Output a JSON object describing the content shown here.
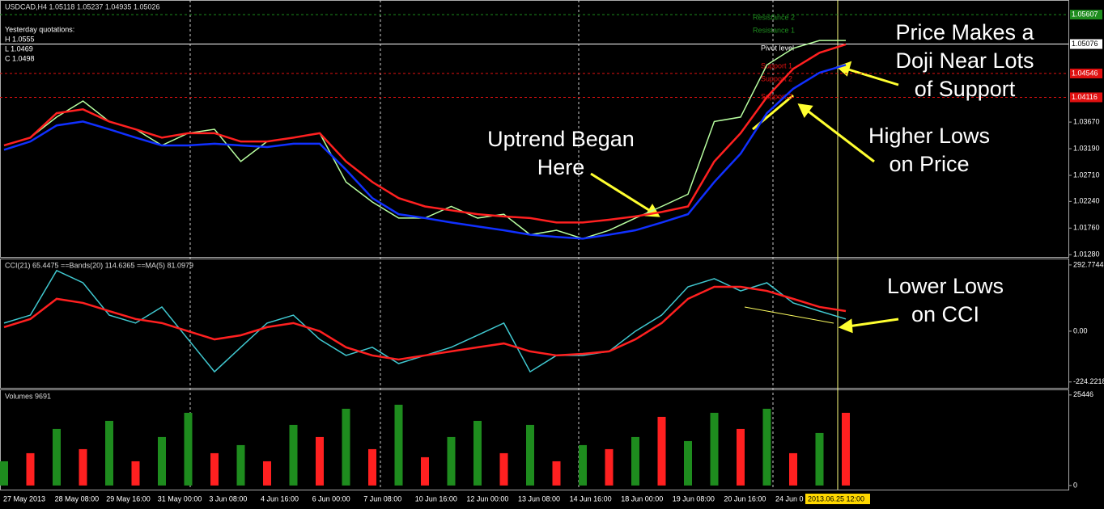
{
  "chart_data": [
    {
      "type": "line",
      "title": "USDCAD,H4  1.05118 1.05237 1.04935 1.05026",
      "info": [
        "Yesterday quotations:",
        "H 1.0555",
        "L 1.0469",
        "C 1.0498"
      ],
      "pivot_labels": [
        "Resistance 2",
        "Resistance 1",
        "Pivot level",
        "Support 1",
        "Support 2",
        "Support 3"
      ],
      "ylim": [
        1.0124,
        1.0587
      ],
      "yticks": [
        {
          "value": 1.0128,
          "label": "1.01280"
        },
        {
          "value": 1.0176,
          "label": "1.01760"
        },
        {
          "value": 1.0224,
          "label": "1.02240"
        },
        {
          "value": 1.0271,
          "label": "1.02710"
        },
        {
          "value": 1.0319,
          "label": "1.03190"
        },
        {
          "value": 1.0367,
          "label": "1.03670"
        }
      ],
      "levels": [
        {
          "value": 1.05607,
          "label": "1.05607",
          "color": "#1e8c1e"
        },
        {
          "value": 1.05076,
          "label": "1.05076",
          "color": "#ffffff"
        },
        {
          "value": 1.04546,
          "label": "1.04546",
          "color": "#e01010"
        },
        {
          "value": 1.04116,
          "label": "1.04116",
          "color": "#e01010"
        }
      ],
      "series": [
        {
          "name": "Price",
          "color": "#b8ffa0",
          "values": [
            1.0325,
            1.0339,
            1.0376,
            1.0405,
            1.0368,
            1.0354,
            1.0325,
            1.0347,
            1.0354,
            1.0296,
            1.0332,
            1.0339,
            1.0347,
            1.0259,
            1.0223,
            1.0194,
            1.0194,
            1.0215,
            1.0194,
            1.0201,
            1.0164,
            1.0172,
            1.0157,
            1.0172,
            1.0194,
            1.0215,
            1.0237,
            1.0368,
            1.0376,
            1.047,
            1.05,
            1.0514,
            1.0514
          ]
        },
        {
          "name": "Fast MA",
          "color": "#ff2020",
          "values": [
            1.0325,
            1.0339,
            1.0383,
            1.039,
            1.0368,
            1.0354,
            1.0339,
            1.0347,
            1.0347,
            1.0332,
            1.0332,
            1.0339,
            1.0347,
            1.0296,
            1.0259,
            1.023,
            1.0215,
            1.0208,
            1.0201,
            1.0197,
            1.0194,
            1.0186,
            1.0186,
            1.0191,
            1.0197,
            1.0205,
            1.0215,
            1.0296,
            1.0347,
            1.0412,
            1.0463,
            1.0492,
            1.0507
          ]
        },
        {
          "name": "Slow MA",
          "color": "#1030ff",
          "values": [
            1.0317,
            1.0332,
            1.0361,
            1.0368,
            1.0354,
            1.0339,
            1.0325,
            1.0325,
            1.0328,
            1.0325,
            1.0322,
            1.0328,
            1.0328,
            1.0281,
            1.023,
            1.0201,
            1.0194,
            1.0186,
            1.0179,
            1.0172,
            1.0164,
            1.016,
            1.0157,
            1.0164,
            1.0172,
            1.0186,
            1.0201,
            1.0259,
            1.031,
            1.0383,
            1.0427,
            1.0456,
            1.047
          ]
        }
      ],
      "annotations": [
        [
          "Price Makes a",
          "Doji Near Lots",
          "of Support"
        ],
        [
          "Uptrend Began",
          "Here"
        ],
        [
          "Higher Lows",
          "on Price"
        ]
      ]
    },
    {
      "type": "line",
      "title": "CCI(21) 65.4475  ==Bands(20) 114.6365  ==MA(5) 81.0979",
      "ylim": [
        -250,
        321
      ],
      "yticks": [
        292.7744,
        {
          "value": 0,
          "label": "0.00"
        },
        -224.2218
      ],
      "series": [
        {
          "name": "CCI",
          "color": "#40c8d0",
          "values": [
            36,
            71,
            268,
            214,
            71,
            36,
            107,
            -36,
            -179,
            -71,
            36,
            71,
            -36,
            -107,
            -71,
            -143,
            -107,
            -71,
            -18,
            36,
            -179,
            -107,
            -107,
            -89,
            0,
            71,
            196,
            232,
            178,
            214,
            125,
            89,
            54
          ]
        },
        {
          "name": "MA",
          "color": "#ff2020",
          "values": [
            18,
            54,
            143,
            125,
            89,
            54,
            36,
            0,
            -36,
            -18,
            18,
            36,
            0,
            -71,
            -107,
            -125,
            -107,
            -89,
            -71,
            -54,
            -89,
            -107,
            -100,
            -89,
            -36,
            36,
            143,
            196,
            196,
            178,
            143,
            107,
            89
          ]
        }
      ],
      "annotations": [
        [
          "Lower Lows",
          "on CCI"
        ]
      ]
    },
    {
      "type": "bar",
      "title": "Volumes 9691",
      "ylim": [
        -700,
        27000
      ],
      "yticks": [
        0,
        25446
      ],
      "values": [
        6810,
        9080,
        15890,
        10215,
        18160,
        6810,
        13620,
        20430,
        9080,
        11350,
        6810,
        17025,
        13620,
        21565,
        10215,
        22700,
        7945,
        13620,
        18160,
        9080,
        17025,
        6810,
        11350,
        10215,
        13620,
        19295,
        12485,
        20430,
        15890,
        21565,
        9080,
        14755,
        20430
      ],
      "colors": [
        "#1e8c1e",
        "#ff2020",
        "#1e8c1e",
        "#ff2020",
        "#1e8c1e",
        "#ff2020",
        "#1e8c1e",
        "#1e8c1e",
        "#ff2020",
        "#1e8c1e",
        "#ff2020",
        "#1e8c1e",
        "#ff2020",
        "#1e8c1e",
        "#ff2020",
        "#1e8c1e",
        "#ff2020",
        "#1e8c1e",
        "#1e8c1e",
        "#ff2020",
        "#1e8c1e",
        "#ff2020",
        "#1e8c1e",
        "#ff2020",
        "#1e8c1e",
        "#ff2020",
        "#1e8c1e",
        "#1e8c1e",
        "#ff2020",
        "#1e8c1e",
        "#ff2020",
        "#1e8c1e",
        "#ff2020"
      ]
    }
  ],
  "x_labels": [
    "27 May 2013",
    "28 May 08:00",
    "29 May 16:00",
    "31 May 00:00",
    "3 Jun 08:00",
    "4 Jun 16:00",
    "6 Jun 00:00",
    "7 Jun 08:00",
    "10 Jun 16:00",
    "12 Jun 00:00",
    "13 Jun 08:00",
    "14 Jun 16:00",
    "18 Jun 00:00",
    "19 Jun 08:00",
    "20 Jun 16:00",
    "24 Jun 0"
  ],
  "cursor_label": "2013.06.25 12:00"
}
